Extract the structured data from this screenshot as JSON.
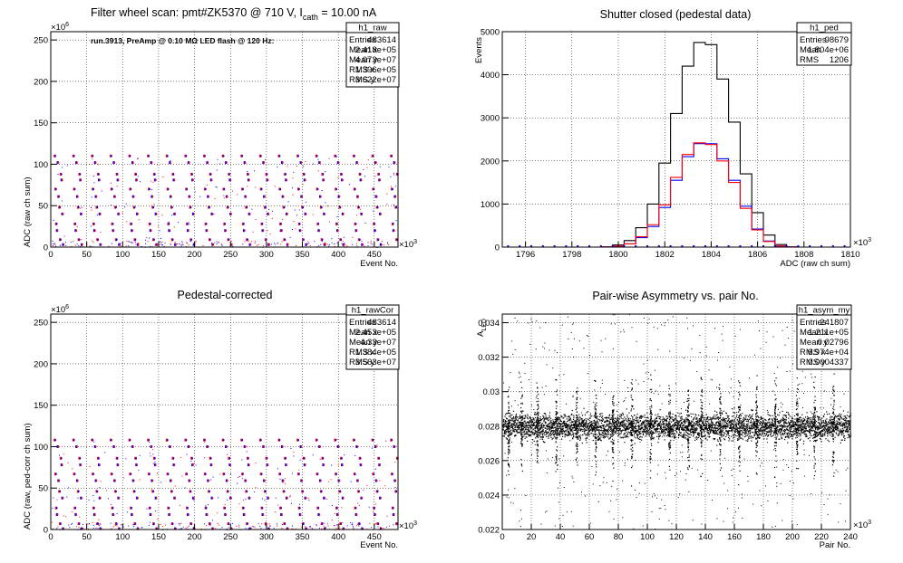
{
  "panels": [
    {
      "title": "Filter wheel scan: pmt#ZK5370 @   710 V, I",
      "title_sub": "cath",
      "title_tail": " = 10.00 nA",
      "xlabel": "Event No.",
      "ylabel": "ADC (raw ch sum)",
      "x_exp": "×10",
      "x_exp_pow": "3",
      "y_exp": "×10",
      "y_exp_pow": "6",
      "note": "run.3913, PreAmp @ 0.10 MΩ LED flash @  120 Hz:",
      "stats": {
        "name": "h1_raw",
        "rows": [
          {
            "k": "Entries",
            "v": "483614"
          },
          {
            "k": "Mean x",
            "v": "2.418e+05"
          },
          {
            "k": "Mean y",
            "v": "4.073e+07"
          },
          {
            "k": "RMS x",
            "v": "1.396e+05"
          },
          {
            "k": "RMS y",
            "v": "3.622e+07"
          }
        ]
      }
    },
    {
      "title": "Shutter closed (pedestal data)",
      "xlabel": "ADC (raw ch sum)",
      "ylabel": "Events",
      "x_exp": "×10",
      "x_exp_pow": "3",
      "stats": {
        "name": "h1_ped",
        "rows": [
          {
            "k": "Entries",
            "v": "98679"
          },
          {
            "k": "Mean",
            "v": "1.804e+06"
          },
          {
            "k": "RMS",
            "v": "1206"
          }
        ]
      }
    },
    {
      "title": "Pedestal-corrected",
      "xlabel": "Event No.",
      "ylabel": "ADC (raw, ped-corr ch sum)",
      "x_exp": "×10",
      "x_exp_pow": "3",
      "y_exp": "×10",
      "y_exp_pow": "6",
      "stats": {
        "name": "h1_rawCor",
        "rows": [
          {
            "k": "Entries",
            "v": "483614"
          },
          {
            "k": "Mean x",
            "v": "2.453e+05"
          },
          {
            "k": "Mean y",
            "v": "4.33e+07"
          },
          {
            "k": "RMS x",
            "v": "1.384e+05"
          },
          {
            "k": "RMS y",
            "v": "3.563e+07"
          }
        ]
      }
    },
    {
      "title": "Pair-wise Asymmetry vs. pair No.",
      "xlabel": "Pair No.",
      "ylabel": "A",
      "ylabel_sub": "LED",
      "x_exp": "×10",
      "x_exp_pow": "3",
      "stats": {
        "name": "h1_asym_my",
        "rows": [
          {
            "k": "Entries",
            "v": "241807"
          },
          {
            "k": "Mean x",
            "v": "1.211e+05"
          },
          {
            "k": "Mean y",
            "v": "0.02796"
          },
          {
            "k": "RMS x",
            "v": "6.974e+04"
          },
          {
            "k": "RMS y",
            "v": "0.0004337"
          }
        ]
      }
    }
  ],
  "chart_data": [
    {
      "type": "scatter",
      "title": "Filter wheel scan: pmt#ZK5370 @   710 V, I_cath = 10.00 nA",
      "xlabel": "Event No.",
      "ylabel": "ADC (raw ch sum)",
      "x_scale": "×10^3",
      "y_scale": "×10^6",
      "xlim": [
        0,
        483
      ],
      "ylim": [
        0,
        260
      ],
      "xticks": [
        0,
        50,
        100,
        150,
        200,
        250,
        300,
        350,
        400,
        450
      ],
      "yticks": [
        0,
        50,
        100,
        150,
        200,
        250
      ],
      "grid": true,
      "colors": [
        "#ff0000",
        "#0000ff"
      ],
      "levels": [
        110,
        102,
        88,
        81,
        70,
        61,
        48,
        40,
        28,
        20,
        9,
        3
      ],
      "cycle_period": 26
    },
    {
      "type": "line",
      "title": "Shutter closed (pedestal data)",
      "xlabel": "ADC (raw ch sum)",
      "ylabel": "Events",
      "x_scale": "×10^3",
      "xlim": [
        1795,
        1810
      ],
      "ylim": [
        0,
        5000
      ],
      "xticks": [
        1796,
        1798,
        1800,
        1802,
        1804,
        1806,
        1808,
        1810
      ],
      "yticks": [
        0,
        1000,
        2000,
        3000,
        4000,
        5000
      ],
      "grid": true,
      "x": [
        1799.5,
        1800,
        1800.5,
        1801,
        1801.5,
        1802,
        1802.5,
        1803,
        1803.5,
        1804,
        1804.5,
        1805,
        1805.5,
        1806,
        1806.5,
        1807,
        1807.5
      ],
      "series": [
        {
          "color": "#000000",
          "values": [
            5,
            50,
            150,
            450,
            1000,
            1950,
            3100,
            4200,
            4750,
            4700,
            3900,
            2900,
            1700,
            800,
            280,
            60,
            5
          ]
        },
        {
          "color": "#0000ff",
          "values": [
            3,
            25,
            75,
            220,
            480,
            920,
            1550,
            2100,
            2400,
            2400,
            2050,
            1550,
            950,
            420,
            140,
            25,
            3
          ]
        },
        {
          "color": "#ff0000",
          "values": [
            3,
            25,
            75,
            240,
            520,
            980,
            1620,
            2150,
            2420,
            2380,
            2000,
            1500,
            900,
            400,
            130,
            25,
            3
          ]
        }
      ]
    },
    {
      "type": "scatter",
      "title": "Pedestal-corrected",
      "xlabel": "Event No.",
      "ylabel": "ADC (raw, ped-corr ch sum)",
      "x_scale": "×10^3",
      "y_scale": "×10^6",
      "xlim": [
        0,
        483
      ],
      "ylim": [
        0,
        260
      ],
      "xticks": [
        0,
        50,
        100,
        150,
        200,
        250,
        300,
        350,
        400,
        450
      ],
      "yticks": [
        0,
        50,
        100,
        150,
        200,
        250
      ],
      "grid": true,
      "colors": [
        "#ff0000",
        "#0000ff"
      ],
      "levels": [
        108,
        100,
        86,
        78,
        67,
        59,
        46,
        38,
        26,
        18,
        7,
        1
      ],
      "cycle_period": 26
    },
    {
      "type": "scatter",
      "title": "Pair-wise Asymmetry vs. pair No.",
      "xlabel": "Pair No.",
      "ylabel": "A_LED",
      "x_scale": "×10^3",
      "xlim": [
        0,
        240
      ],
      "ylim": [
        0.022,
        0.0345
      ],
      "xticks": [
        0,
        20,
        40,
        60,
        80,
        100,
        120,
        140,
        160,
        180,
        200,
        220,
        240
      ],
      "yticks": [
        0.022,
        0.024,
        0.026,
        0.028,
        0.03,
        0.032,
        0.034
      ],
      "grid": true,
      "colors": [
        "#000000"
      ],
      "band_center": 0.028,
      "band_halfwidth": 0.0004,
      "spike_positions": [
        4,
        13,
        24,
        37,
        51,
        64,
        76,
        89,
        102,
        115,
        128,
        137,
        150,
        163,
        175,
        188,
        203,
        215,
        228
      ]
    }
  ]
}
